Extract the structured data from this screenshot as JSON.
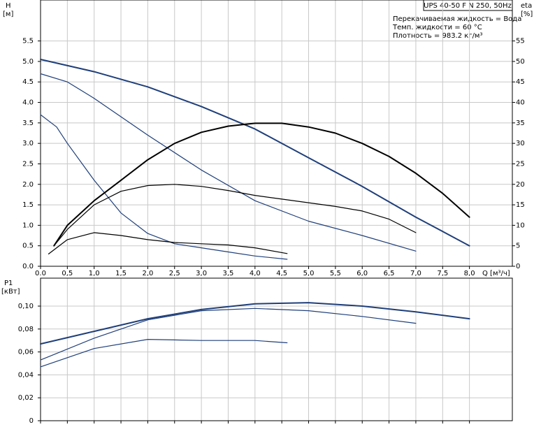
{
  "chart_data": [
    {
      "type": "line",
      "ylabel": "H",
      "yunit": "[м]",
      "y2label": "eta",
      "y2unit": "[%]",
      "xlabel": "Q [м³/ч]",
      "model": "UPS 40-50 F N 250, 50Hz",
      "notes": [
        "Перекачиваемая жидкость = Вода",
        "Темп. жидкости = 60 °C",
        "Плотность = 983.2 кг/м³"
      ],
      "xlim": [
        0,
        8.8
      ],
      "ylim": [
        0,
        6.5
      ],
      "y2lim": [
        0,
        65
      ],
      "grid": true,
      "xticks": [
        {
          "value": 0,
          "label": "0.0"
        },
        {
          "value": 0.5,
          "label": "0,5"
        },
        {
          "value": 1,
          "label": "1,0"
        },
        {
          "value": 1.5,
          "label": "1,5"
        },
        {
          "value": 2,
          "label": "2,0"
        },
        {
          "value": 2.5,
          "label": "2,5"
        },
        {
          "value": 3,
          "label": "3,0"
        },
        {
          "value": 3.5,
          "label": "3,5"
        },
        {
          "value": 4,
          "label": "4,0"
        },
        {
          "value": 4.5,
          "label": "4,5"
        },
        {
          "value": 5,
          "label": "5,0"
        },
        {
          "value": 5.5,
          "label": "5,5"
        },
        {
          "value": 6,
          "label": "6,0"
        },
        {
          "value": 6.5,
          "label": "6,5"
        },
        {
          "value": 7,
          "label": "7,0"
        },
        {
          "value": 7.5,
          "label": "7,5"
        },
        {
          "value": 8,
          "label": "8,0"
        }
      ],
      "yticks": [
        {
          "value": 0,
          "label": "0.0"
        },
        {
          "value": 0.5,
          "label": "0.5"
        },
        {
          "value": 1,
          "label": "1.0"
        },
        {
          "value": 1.5,
          "label": "1.5"
        },
        {
          "value": 2,
          "label": "2.0"
        },
        {
          "value": 2.5,
          "label": "2.5"
        },
        {
          "value": 3,
          "label": "3.0"
        },
        {
          "value": 3.5,
          "label": "3.5"
        },
        {
          "value": 4,
          "label": "4.0"
        },
        {
          "value": 4.5,
          "label": "4.5"
        },
        {
          "value": 5,
          "label": "5.0"
        },
        {
          "value": 5.5,
          "label": "5.5"
        }
      ],
      "y2ticks": [
        0,
        5,
        10,
        15,
        20,
        25,
        30,
        35,
        40,
        45,
        50,
        55
      ],
      "series": [
        {
          "color": "#1f3f7a",
          "linewidth": 2,
          "x": [
            0,
            1,
            2,
            3,
            4,
            5,
            6,
            7,
            8
          ],
          "values": [
            5.05,
            4.75,
            4.38,
            3.9,
            3.35,
            2.65,
            1.95,
            1.2,
            0.5
          ]
        },
        {
          "color": "#1f3f7a",
          "linewidth": 1.2,
          "x": [
            0,
            0.5,
            1,
            2,
            3,
            4,
            5,
            6,
            7
          ],
          "values": [
            4.7,
            4.5,
            4.1,
            3.2,
            2.35,
            1.6,
            1.1,
            0.75,
            0.37
          ]
        },
        {
          "color": "#1f3f7a",
          "linewidth": 1.2,
          "x": [
            0,
            0.3,
            0.5,
            1,
            1.5,
            2,
            2.5,
            3,
            3.5,
            4,
            4.6
          ],
          "values": [
            3.7,
            3.4,
            3.0,
            2.1,
            1.3,
            0.8,
            0.55,
            0.45,
            0.35,
            0.25,
            0.17
          ]
        },
        {
          "color": "#000000",
          "linewidth": 2,
          "axis": "y2",
          "x": [
            0.25,
            0.5,
            1,
            1.5,
            2,
            2.5,
            3,
            3.5,
            4,
            4.5,
            5,
            5.5,
            6,
            6.5,
            7,
            7.5,
            8
          ],
          "values": [
            5,
            10,
            16,
            21,
            26,
            30,
            32.7,
            34.2,
            34.9,
            34.9,
            34,
            32.5,
            30,
            26.8,
            22.7,
            17.8,
            12
          ]
        },
        {
          "color": "#000000",
          "linewidth": 1.2,
          "axis": "y2",
          "x": [
            0.25,
            0.5,
            1,
            1.5,
            2,
            2.5,
            3,
            3.5,
            4,
            4.5,
            5,
            5.5,
            6,
            6.5,
            7
          ],
          "values": [
            5,
            9,
            15,
            18.3,
            19.7,
            20,
            19.5,
            18.5,
            17.3,
            16.4,
            15.5,
            14.6,
            13.5,
            11.5,
            8.2
          ]
        },
        {
          "color": "#000000",
          "linewidth": 1.2,
          "axis": "y2",
          "x": [
            0.15,
            0.5,
            1,
            1.5,
            2,
            2.5,
            3,
            3.5,
            4,
            4.6
          ],
          "values": [
            3,
            6.5,
            8.2,
            7.5,
            6.5,
            5.8,
            5.5,
            5.2,
            4.5,
            3.1
          ]
        }
      ]
    },
    {
      "type": "line",
      "ylabel": "P1",
      "yunit": "[кВт]",
      "xlim": [
        0,
        8.8
      ],
      "ylim": [
        0,
        0.1244
      ],
      "grid": true,
      "xticks": [
        0,
        0.5,
        1,
        1.5,
        2,
        2.5,
        3,
        3.5,
        4,
        4.5,
        5,
        5.5,
        6,
        6.5,
        7,
        7.5,
        8
      ],
      "yticks": [
        0,
        {
          "value": 0.02,
          "label": "0,02"
        },
        {
          "value": 0.04,
          "label": "0,04"
        },
        {
          "value": 0.06,
          "label": "0,06"
        },
        {
          "value": 0.08,
          "label": "0,08"
        },
        {
          "value": 0.1,
          "label": "0,10"
        }
      ],
      "series": [
        {
          "color": "#1f3f7a",
          "linewidth": 2,
          "x": [
            0,
            1,
            2,
            3,
            4,
            5,
            6,
            7,
            8
          ],
          "values": [
            0.067,
            0.078,
            0.089,
            0.097,
            0.102,
            0.103,
            0.1,
            0.095,
            0.089
          ]
        },
        {
          "color": "#1f3f7a",
          "linewidth": 1.2,
          "x": [
            0,
            1,
            2,
            3,
            4,
            5,
            6,
            7
          ],
          "values": [
            0.053,
            0.072,
            0.088,
            0.096,
            0.098,
            0.096,
            0.091,
            0.085
          ]
        },
        {
          "color": "#1f3f7a",
          "linewidth": 1.2,
          "x": [
            0,
            1,
            2,
            3,
            4,
            4.6
          ],
          "values": [
            0.047,
            0.063,
            0.071,
            0.07,
            0.07,
            0.068
          ]
        }
      ]
    }
  ]
}
